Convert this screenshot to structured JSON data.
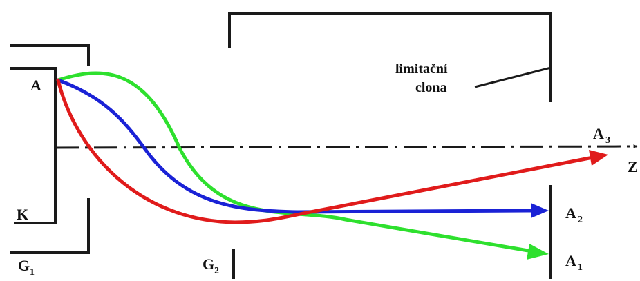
{
  "labels": {
    "point_A": "A",
    "cathode": "K",
    "g1": "G",
    "g1_sub": "1",
    "g2": "G",
    "g2_sub": "2",
    "a1": "A",
    "a1_sub": "1",
    "a2": "A",
    "a2_sub": "2",
    "a3": "A",
    "a3_sub": "3",
    "axis": "Z",
    "aperture_line1": "limitační",
    "aperture_line2": "clona"
  },
  "colors": {
    "electrode": "#1a1a1a",
    "axis": "#1a1a1a",
    "ray_red": "#e01b1b",
    "ray_blue": "#1a22d6",
    "ray_green": "#2ee02e"
  }
}
